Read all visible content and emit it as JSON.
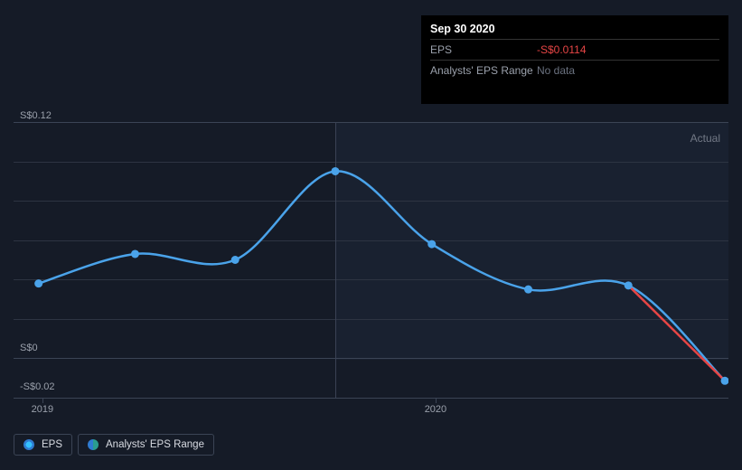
{
  "tooltip": {
    "date": "Sep 30 2020",
    "rows": [
      {
        "label": "EPS",
        "value": "-S$0.0114",
        "style": "neg"
      },
      {
        "label": "Analysts' EPS Range",
        "value": "No data",
        "style": "muted"
      }
    ]
  },
  "chart": {
    "type": "line",
    "actual_label": "Actual",
    "y_axis": {
      "ticks": [
        {
          "label": "S$0.12",
          "value": 0.12
        },
        {
          "label": "S$0",
          "value": 0.0
        },
        {
          "label": "-S$0.02",
          "value": -0.02
        }
      ],
      "ylim": [
        -0.02,
        0.12
      ],
      "gridlines": [
        0.1,
        0.08,
        0.06,
        0.04,
        0.02
      ],
      "label_fontsize": 11,
      "label_color": "#9aa0ab"
    },
    "x_axis": {
      "ticks": [
        {
          "label": "2019",
          "t": 0.04
        },
        {
          "label": "2020",
          "t": 0.59
        }
      ],
      "label_fontsize": 11,
      "label_color": "#9aa0ab"
    },
    "shade_from_t": 0.45,
    "vline_t": 0.45,
    "series": [
      {
        "name": "EPS",
        "color": "#4aa3ea",
        "marker_fill": "#4aa3ea",
        "marker_radius": 4.5,
        "line_width": 2.5,
        "points": [
          {
            "t": 0.035,
            "v": 0.038
          },
          {
            "t": 0.17,
            "v": 0.053
          },
          {
            "t": 0.31,
            "v": 0.05
          },
          {
            "t": 0.45,
            "v": 0.095
          },
          {
            "t": 0.585,
            "v": 0.058
          },
          {
            "t": 0.72,
            "v": 0.035
          },
          {
            "t": 0.86,
            "v": 0.037
          },
          {
            "t": 0.995,
            "v": -0.0114
          }
        ],
        "last_segment_color": "#e64545"
      }
    ],
    "background_color": "#151b27",
    "grid_color": "#2d3442",
    "major_grid_color": "#3b4455"
  },
  "legend": {
    "items": [
      {
        "label": "EPS",
        "swatch": "eps"
      },
      {
        "label": "Analysts' EPS Range",
        "swatch": "range"
      }
    ]
  }
}
